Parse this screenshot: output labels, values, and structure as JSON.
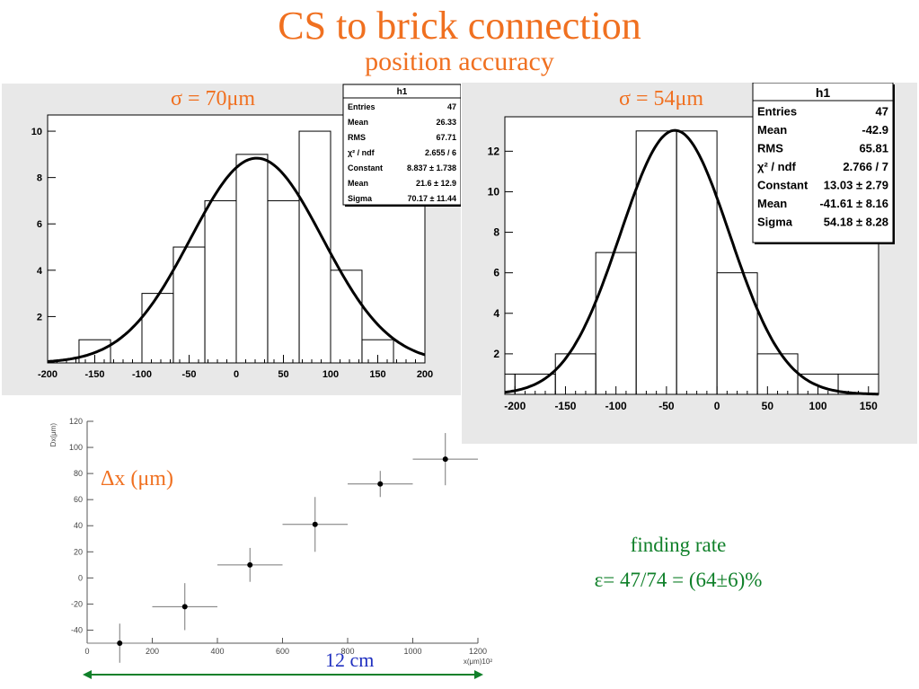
{
  "header": {
    "title": "CS to brick connection",
    "subtitle": "position accuracy"
  },
  "annotations": {
    "sigma_left": "σ = 70μm",
    "sigma_right": "σ = 54μm",
    "dx_label": "Δx (μm)",
    "finding_rate_title": "finding rate",
    "finding_rate_value": "ε= 47/74 = (64±6)%",
    "span_label": "12 cm"
  },
  "colors": {
    "orange": "#f07020",
    "green": "#10802a",
    "blue": "#2030c0",
    "panel_bg": "#e8e8e8"
  },
  "stats_left": {
    "title": "h1",
    "rows": [
      {
        "k": "Entries",
        "v": "47"
      },
      {
        "k": "Mean",
        "v": "26.33"
      },
      {
        "k": "RMS",
        "v": "67.71"
      },
      {
        "k": "χ² / ndf",
        "v": "2.655 / 6"
      },
      {
        "k": "Constant",
        "v": "8.837 ± 1.738"
      },
      {
        "k": "Mean",
        "v": "21.6 ± 12.9"
      },
      {
        "k": "Sigma",
        "v": "70.17 ± 11.44"
      }
    ]
  },
  "stats_right": {
    "title": "h1",
    "rows": [
      {
        "k": "Entries",
        "v": "47"
      },
      {
        "k": "Mean",
        "v": "-42.9"
      },
      {
        "k": "RMS",
        "v": "65.81"
      },
      {
        "k": "χ² / ndf",
        "v": "2.766 / 7"
      },
      {
        "k": "Constant",
        "v": "13.03 ± 2.79"
      },
      {
        "k": "Mean",
        "v": "-41.61 ± 8.16"
      },
      {
        "k": "Sigma",
        "v": "54.18 ± 8.28"
      }
    ]
  },
  "chart_data": [
    {
      "type": "bar",
      "title": "",
      "xlim": [
        -200,
        200
      ],
      "ylim": [
        0,
        10.7
      ],
      "xticks": [
        -200,
        -150,
        -100,
        -50,
        0,
        50,
        100,
        150,
        200
      ],
      "xtick_labels": [
        "-200",
        "-150",
        "-100",
        "-50",
        "0",
        "50",
        "100",
        "150",
        "200"
      ],
      "yticks": [
        0,
        2,
        4,
        6,
        8,
        10
      ],
      "ytick_labels": [
        "",
        "2",
        "4",
        "6",
        "8",
        "10"
      ],
      "bin_edges": [
        -200,
        -166.7,
        -133.3,
        -100,
        -66.7,
        -33.3,
        0,
        33.3,
        66.7,
        100,
        133.3,
        166.7,
        200
      ],
      "values": [
        0,
        1,
        0,
        3,
        5,
        7,
        9,
        7,
        10,
        4,
        1,
        0
      ],
      "fit": {
        "constant": 8.837,
        "mean": 21.6,
        "sigma": 70.17
      },
      "grid": false
    },
    {
      "type": "bar",
      "title": "",
      "xlim": [
        -210,
        160
      ],
      "ylim": [
        0,
        13.7
      ],
      "xticks": [
        -200,
        -150,
        -100,
        -50,
        0,
        50,
        100,
        150
      ],
      "xtick_labels": [
        "-200",
        "-150",
        "-100",
        "-50",
        "0",
        "50",
        "100",
        "150"
      ],
      "yticks": [
        2,
        4,
        6,
        8,
        10,
        12
      ],
      "ytick_labels": [
        "2",
        "4",
        "6",
        "8",
        "10",
        "12"
      ],
      "bin_edges": [
        -240,
        -200,
        -160,
        -120,
        -80,
        -40,
        0,
        40,
        80,
        120,
        160
      ],
      "values": [
        1,
        1,
        2,
        7,
        13,
        13,
        6,
        2,
        1,
        1
      ],
      "fit": {
        "constant": 13.03,
        "mean": -41.61,
        "sigma": 54.18
      },
      "grid": false
    },
    {
      "type": "scatter",
      "title": "",
      "ylabel": "Dx(μm)",
      "xlabel": "x(μm)10²",
      "xlim": [
        0,
        1200
      ],
      "ylim": [
        -50,
        120
      ],
      "xticks": [
        0,
        200,
        400,
        600,
        800,
        1000,
        1200
      ],
      "xtick_labels": [
        "0",
        "200",
        "400",
        "600",
        "800",
        "1000",
        "1200"
      ],
      "yticks": [
        -40,
        -20,
        0,
        20,
        40,
        60,
        80,
        100,
        120
      ],
      "ytick_labels": [
        "-40",
        "-20",
        "0",
        "20",
        "40",
        "60",
        "80",
        "100",
        "120"
      ],
      "points": [
        {
          "x": 100,
          "y": -50,
          "xerr": 100,
          "yerr": 15
        },
        {
          "x": 300,
          "y": -22,
          "xerr": 100,
          "yerr": 18
        },
        {
          "x": 500,
          "y": 10,
          "xerr": 100,
          "yerr": 13
        },
        {
          "x": 700,
          "y": 41,
          "xerr": 100,
          "yerr": 21
        },
        {
          "x": 900,
          "y": 72,
          "xerr": 100,
          "yerr": 10
        },
        {
          "x": 1100,
          "y": 91,
          "xerr": 100,
          "yerr": 20
        }
      ],
      "grid": false
    }
  ]
}
